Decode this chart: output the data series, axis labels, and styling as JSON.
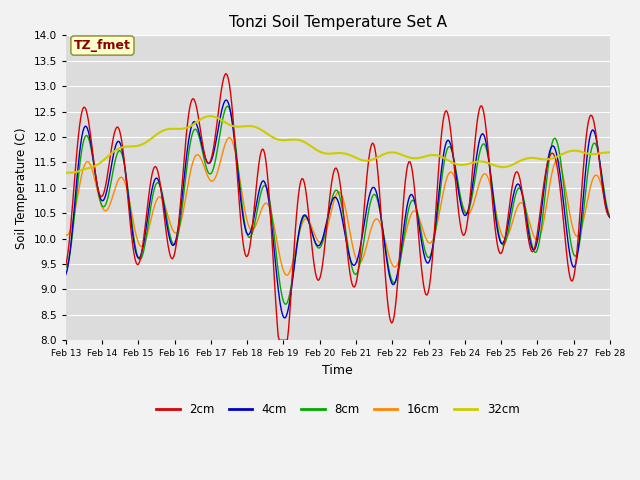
{
  "title": "Tonzi Soil Temperature Set A",
  "xlabel": "Time",
  "ylabel": "Soil Temperature (C)",
  "ylim": [
    8.0,
    14.0
  ],
  "yticks": [
    8.0,
    8.5,
    9.0,
    9.5,
    10.0,
    10.5,
    11.0,
    11.5,
    12.0,
    12.5,
    13.0,
    13.5,
    14.0
  ],
  "xtick_labels": [
    "Feb 13",
    "Feb 14",
    "Feb 15",
    "Feb 16",
    "Feb 17",
    "Feb 18",
    "Feb 19",
    "Feb 20",
    "Feb 21",
    "Feb 22",
    "Feb 23",
    "Feb 24",
    "Feb 25",
    "Feb 26",
    "Feb 27",
    "Feb 28"
  ],
  "annotation": "TZ_fmet",
  "annotation_color": "#8B0000",
  "annotation_bg": "#FFFFCC",
  "colors": {
    "2cm": "#DD0000",
    "4cm": "#0000CC",
    "8cm": "#00AA00",
    "16cm": "#FF8800",
    "32cm": "#CCCC00"
  },
  "legend_labels": [
    "2cm",
    "4cm",
    "8cm",
    "16cm",
    "32cm"
  ],
  "fig_bg": "#F2F2F2",
  "plot_bg": "#DCDCDC",
  "grid_color": "#FFFFFF",
  "figsize": [
    6.4,
    4.8
  ],
  "dpi": 100
}
